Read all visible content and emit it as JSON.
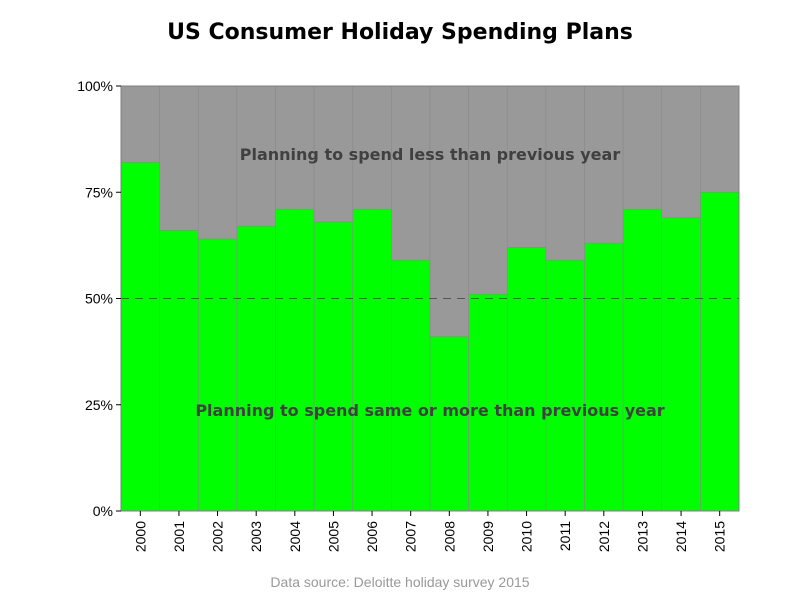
{
  "chart_data": {
    "type": "bar",
    "title": "US Consumer Holiday Spending Plans",
    "source": "Data source: Deloitte holiday survey 2015",
    "categories": [
      "2000",
      "2001",
      "2002",
      "2003",
      "2004",
      "2005",
      "2006",
      "2007",
      "2008",
      "2009",
      "2010",
      "2011",
      "2012",
      "2013",
      "2014",
      "2015"
    ],
    "stacked": true,
    "series": [
      {
        "name": "Planning to spend same or more than previous year",
        "color": "#00ff00",
        "values": [
          82,
          66,
          64,
          67,
          71,
          68,
          71,
          59,
          41,
          51,
          62,
          59,
          63,
          71,
          69,
          75
        ]
      },
      {
        "name": "Planning to spend less than previous year",
        "color": "#999999",
        "values": [
          18,
          34,
          36,
          33,
          29,
          32,
          29,
          41,
          59,
          49,
          38,
          41,
          37,
          29,
          31,
          25
        ]
      }
    ],
    "y_ticks": [
      "0%",
      "25%",
      "50%",
      "75%",
      "100%"
    ],
    "ylim": [
      0,
      100
    ],
    "reference_line": 50,
    "xlabel": "",
    "ylabel": "",
    "legend": "none"
  }
}
